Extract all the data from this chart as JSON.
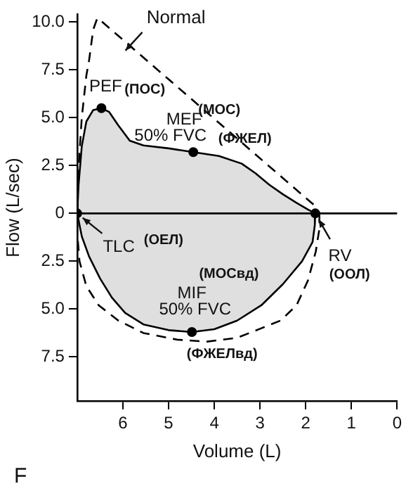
{
  "chart_data": {
    "type": "line",
    "xlabel": "Volume (L)",
    "ylabel": "Flow (L/sec)",
    "xlim": [
      7,
      0
    ],
    "xticks": [
      6,
      5,
      4,
      3,
      2,
      1,
      0
    ],
    "ylim": [
      -9.8,
      10.4
    ],
    "yticks": [
      {
        "value": 10,
        "label": "10.0"
      },
      7.5,
      {
        "value": 5,
        "label": "5.0"
      },
      2.5,
      0,
      {
        "value": -2.5,
        "label": "2.5"
      },
      {
        "value": -5,
        "label": "5.0"
      },
      {
        "value": -7.5,
        "label": "7.5"
      }
    ],
    "grid": false,
    "legend": false,
    "ref_lines": [
      {
        "axis": "y",
        "value": 0,
        "color": "#000000"
      }
    ],
    "series": [
      {
        "type": "area",
        "color": "#000000",
        "line_style": "solid",
        "x": [
          7.0,
          6.97,
          6.9,
          6.8,
          6.65,
          6.47,
          6.3,
          6.1,
          5.85,
          5.55,
          5.0,
          4.46,
          3.9,
          3.4,
          3.1,
          2.8,
          2.5,
          2.2,
          1.95,
          1.79
        ],
        "values": [
          0,
          1.5,
          3.5,
          4.8,
          5.4,
          5.5,
          5.3,
          4.6,
          3.8,
          3.55,
          3.4,
          3.2,
          3.0,
          2.6,
          2.1,
          1.5,
          1.0,
          0.55,
          0.2,
          0
        ]
      },
      {
        "type": "area",
        "color": "#000000",
        "line_style": "solid",
        "x": [
          1.79,
          1.8,
          1.85,
          2.08,
          2.5,
          2.97,
          3.5,
          4.0,
          4.49,
          5.0,
          5.55,
          5.95,
          6.24,
          6.5,
          6.74,
          6.9,
          7.0
        ],
        "values": [
          0,
          -0.6,
          -1.5,
          -2.5,
          -3.7,
          -4.8,
          -5.6,
          -6.05,
          -6.2,
          -6.1,
          -5.8,
          -5.2,
          -4.4,
          -3.4,
          -2.25,
          -1.2,
          0
        ]
      },
      {
        "name": "Normal",
        "color": "#000000",
        "line_style": "dashed",
        "x": [
          7.0,
          6.98,
          6.9,
          6.8,
          6.74,
          6.65,
          6.56,
          6.45,
          1.8,
          1.7
        ],
        "values": [
          0,
          2,
          5,
          7.2,
          8.0,
          9.6,
          10.2,
          10.0,
          0.4,
          0
        ]
      },
      {
        "color": "#000000",
        "line_style": "dashed",
        "x": [
          1.7,
          1.7,
          1.78,
          1.95,
          2.2,
          2.55,
          2.97,
          3.5,
          4.16,
          4.8,
          5.55,
          6.1,
          6.53,
          6.8,
          6.95,
          7.0,
          7.0
        ],
        "values": [
          0,
          -0.8,
          -2.0,
          -3.5,
          -4.8,
          -5.6,
          -6.0,
          -6.5,
          -6.7,
          -6.6,
          -6.25,
          -5.6,
          -4.8,
          -3.8,
          -2.5,
          -1.0,
          0
        ]
      },
      {
        "type": "scatter",
        "color": "#000000",
        "marker": "circle",
        "x": [
          6.47,
          4.46,
          7.0,
          1.79,
          4.49
        ],
        "values": [
          5.5,
          3.2,
          0,
          0,
          -6.2
        ]
      }
    ],
    "annotations": [
      "PEF",
      "(ПОС)",
      "MEF",
      "50% FVC",
      "(МОС)",
      "(ФЖЕЛ)",
      "TLC",
      "(ОЕЛ)",
      "RV",
      "(ООЛ)",
      "(МОСвд)",
      "MIF",
      "50% FVC",
      "(ФЖЕЛвд)",
      "F"
    ]
  }
}
